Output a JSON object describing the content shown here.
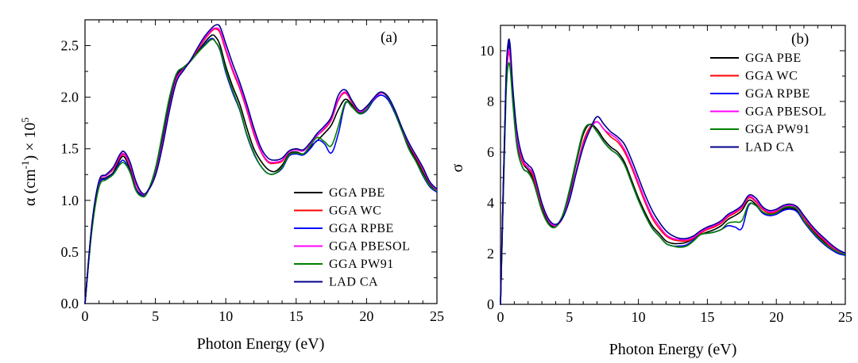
{
  "chart_data": [
    {
      "type": "line",
      "panel_label": "(a)",
      "xlabel": "Photon Energy (eV)",
      "ylabel": "α (cm⁻¹) × 10⁵",
      "ylabel_parts": {
        "symbol": "α (cm",
        "exp1": "-1",
        "mid": ") × 10",
        "exp2": "5"
      },
      "xlim": [
        0,
        25
      ],
      "ylim": [
        0,
        2.75
      ],
      "xticks": [
        0,
        5,
        10,
        15,
        20,
        25
      ],
      "xtick_labels": [
        "0",
        "5",
        "10",
        "15",
        "20",
        "25"
      ],
      "yticks": [
        0,
        0.5,
        1.0,
        1.5,
        2.0,
        2.5
      ],
      "ytick_labels": [
        "0.0",
        "0.5",
        "1.0",
        "1.5",
        "2.0",
        "2.5"
      ],
      "legend_position": "bottom-right",
      "x": [
        0,
        0.5,
        1,
        1.5,
        2,
        2.5,
        2.8,
        3.2,
        3.6,
        4,
        4.4,
        5,
        5.5,
        6,
        6.5,
        7,
        7.5,
        8,
        8.5,
        9,
        9.3,
        9.6,
        10,
        10.5,
        11,
        11.5,
        12,
        12.5,
        13,
        13.5,
        14,
        14.5,
        15,
        15.5,
        16,
        16.5,
        17,
        17.5,
        18,
        18.5,
        19,
        19.5,
        20,
        20.5,
        21,
        21.5,
        22,
        22.5,
        23,
        23.5,
        24,
        24.5,
        25
      ],
      "series": [
        {
          "name": "GGA PBE",
          "color": "#000000",
          "values": [
            0,
            0.75,
            1.16,
            1.22,
            1.27,
            1.4,
            1.42,
            1.3,
            1.12,
            1.06,
            1.08,
            1.28,
            1.6,
            1.95,
            2.2,
            2.28,
            2.35,
            2.44,
            2.53,
            2.6,
            2.58,
            2.5,
            2.3,
            2.1,
            1.93,
            1.7,
            1.5,
            1.38,
            1.3,
            1.28,
            1.34,
            1.45,
            1.47,
            1.45,
            1.52,
            1.58,
            1.65,
            1.73,
            1.88,
            1.98,
            1.92,
            1.85,
            1.88,
            1.97,
            2.02,
            1.98,
            1.85,
            1.68,
            1.52,
            1.4,
            1.27,
            1.15,
            1.1
          ]
        },
        {
          "name": "GGA WC",
          "color": "#ff0000",
          "values": [
            0,
            0.77,
            1.18,
            1.24,
            1.3,
            1.42,
            1.44,
            1.34,
            1.16,
            1.07,
            1.08,
            1.26,
            1.55,
            1.9,
            2.18,
            2.27,
            2.35,
            2.46,
            2.56,
            2.64,
            2.66,
            2.62,
            2.45,
            2.25,
            2.08,
            1.87,
            1.64,
            1.47,
            1.37,
            1.36,
            1.38,
            1.47,
            1.49,
            1.48,
            1.55,
            1.63,
            1.69,
            1.78,
            1.97,
            2.04,
            1.94,
            1.86,
            1.9,
            1.98,
            2.04,
            2.0,
            1.87,
            1.7,
            1.55,
            1.42,
            1.3,
            1.17,
            1.1
          ]
        },
        {
          "name": "GGA RPBE",
          "color": "#0000ff",
          "values": [
            0,
            0.74,
            1.15,
            1.21,
            1.26,
            1.37,
            1.38,
            1.28,
            1.11,
            1.05,
            1.07,
            1.3,
            1.63,
            1.98,
            2.22,
            2.29,
            2.35,
            2.43,
            2.51,
            2.57,
            2.53,
            2.45,
            2.24,
            2.04,
            1.87,
            1.63,
            1.45,
            1.33,
            1.26,
            1.26,
            1.31,
            1.43,
            1.45,
            1.44,
            1.5,
            1.58,
            1.55,
            1.46,
            1.65,
            1.94,
            1.9,
            1.84,
            1.87,
            1.97,
            2.02,
            1.98,
            1.85,
            1.68,
            1.5,
            1.38,
            1.24,
            1.13,
            1.08
          ]
        },
        {
          "name": "GGA PBESOL",
          "color": "#ff00ff",
          "values": [
            0,
            0.77,
            1.18,
            1.24,
            1.31,
            1.43,
            1.45,
            1.35,
            1.17,
            1.07,
            1.08,
            1.25,
            1.54,
            1.89,
            2.17,
            2.27,
            2.36,
            2.47,
            2.57,
            2.65,
            2.67,
            2.64,
            2.47,
            2.27,
            2.1,
            1.89,
            1.66,
            1.48,
            1.38,
            1.37,
            1.39,
            1.47,
            1.49,
            1.48,
            1.55,
            1.63,
            1.7,
            1.79,
            1.98,
            2.05,
            1.95,
            1.86,
            1.9,
            1.98,
            2.04,
            2.0,
            1.87,
            1.7,
            1.55,
            1.43,
            1.31,
            1.17,
            1.1
          ]
        },
        {
          "name": "GGA PW91",
          "color": "#008000",
          "values": [
            0,
            0.72,
            1.13,
            1.2,
            1.25,
            1.35,
            1.36,
            1.27,
            1.1,
            1.04,
            1.07,
            1.31,
            1.65,
            2.0,
            2.23,
            2.29,
            2.35,
            2.43,
            2.5,
            2.56,
            2.53,
            2.46,
            2.26,
            2.06,
            1.88,
            1.64,
            1.46,
            1.33,
            1.26,
            1.26,
            1.32,
            1.44,
            1.46,
            1.45,
            1.53,
            1.61,
            1.57,
            1.53,
            1.72,
            1.95,
            1.9,
            1.84,
            1.88,
            1.99,
            2.05,
            2.0,
            1.86,
            1.68,
            1.5,
            1.38,
            1.25,
            1.14,
            1.09
          ]
        },
        {
          "name": "LAD CA",
          "color": "#00008b",
          "values": [
            0,
            0.78,
            1.19,
            1.25,
            1.32,
            1.45,
            1.47,
            1.37,
            1.19,
            1.08,
            1.08,
            1.24,
            1.52,
            1.87,
            2.15,
            2.26,
            2.36,
            2.48,
            2.59,
            2.67,
            2.7,
            2.68,
            2.52,
            2.32,
            2.14,
            1.93,
            1.7,
            1.51,
            1.41,
            1.39,
            1.41,
            1.48,
            1.5,
            1.49,
            1.56,
            1.65,
            1.72,
            1.81,
            2.02,
            2.07,
            1.96,
            1.87,
            1.91,
            1.99,
            2.05,
            2.01,
            1.88,
            1.71,
            1.56,
            1.44,
            1.32,
            1.18,
            1.11
          ]
        }
      ]
    },
    {
      "type": "line",
      "panel_label": "(b)",
      "xlabel": "Photon Energy (eV)",
      "ylabel": "σ",
      "xlim": [
        0,
        25
      ],
      "ylim": [
        0,
        11
      ],
      "xticks": [
        0,
        5,
        10,
        15,
        20,
        25
      ],
      "xtick_labels": [
        "0",
        "5",
        "10",
        "15",
        "20",
        "25"
      ],
      "yticks": [
        0,
        2,
        4,
        6,
        8,
        10
      ],
      "ytick_labels": [
        "0",
        "2",
        "4",
        "6",
        "8",
        "10"
      ],
      "legend_position": "top-right",
      "x": [
        0,
        0.2,
        0.4,
        0.55,
        0.7,
        0.9,
        1.2,
        1.6,
        2,
        2.4,
        3,
        3.5,
        4,
        4.5,
        5,
        5.5,
        6,
        6.5,
        7,
        7.5,
        8,
        8.5,
        9,
        9.5,
        10,
        10.5,
        11,
        11.5,
        12,
        12.5,
        13,
        13.5,
        14,
        14.5,
        15,
        15.5,
        16,
        16.5,
        17,
        17.5,
        18,
        18.5,
        19,
        19.5,
        20,
        20.5,
        21,
        21.5,
        22,
        22.5,
        23,
        23.5,
        24,
        24.5,
        25
      ],
      "series": [
        {
          "name": "GGA PBE",
          "color": "#000000",
          "values": [
            0,
            4.5,
            8.7,
            10.1,
            9.9,
            8.3,
            6.5,
            5.6,
            5.3,
            4.9,
            3.8,
            3.2,
            3.1,
            3.5,
            4.4,
            5.6,
            6.7,
            7.1,
            6.9,
            6.5,
            6.2,
            6.0,
            5.6,
            4.9,
            4.2,
            3.6,
            3.1,
            2.8,
            2.5,
            2.4,
            2.4,
            2.45,
            2.6,
            2.75,
            2.85,
            2.95,
            3.1,
            3.35,
            3.5,
            3.7,
            4.1,
            3.95,
            3.65,
            3.55,
            3.6,
            3.75,
            3.8,
            3.7,
            3.3,
            3.0,
            2.7,
            2.45,
            2.2,
            2.05,
            1.95
          ]
        },
        {
          "name": "GGA WC",
          "color": "#ff0000",
          "values": [
            0,
            4.6,
            8.6,
            9.8,
            9.7,
            8.2,
            6.5,
            5.6,
            5.4,
            5.0,
            3.9,
            3.3,
            3.1,
            3.4,
            4.2,
            5.3,
            6.4,
            7.0,
            7.2,
            6.9,
            6.6,
            6.4,
            6.0,
            5.4,
            4.7,
            4.0,
            3.4,
            3.0,
            2.7,
            2.55,
            2.5,
            2.5,
            2.6,
            2.8,
            2.95,
            3.05,
            3.2,
            3.45,
            3.6,
            3.8,
            4.2,
            4.05,
            3.75,
            3.6,
            3.65,
            3.8,
            3.85,
            3.75,
            3.4,
            3.05,
            2.75,
            2.5,
            2.25,
            2.1,
            1.98
          ]
        },
        {
          "name": "GGA RPBE",
          "color": "#0000ff",
          "values": [
            0,
            4.4,
            8.8,
            10.2,
            10.0,
            8.2,
            6.3,
            5.4,
            5.2,
            4.8,
            3.7,
            3.15,
            3.05,
            3.5,
            4.5,
            5.7,
            6.8,
            7.1,
            6.8,
            6.4,
            6.1,
            5.9,
            5.5,
            4.8,
            4.1,
            3.5,
            3.0,
            2.7,
            2.4,
            2.3,
            2.3,
            2.35,
            2.55,
            2.75,
            2.8,
            2.85,
            2.95,
            3.1,
            3.05,
            3.0,
            3.9,
            3.9,
            3.6,
            3.5,
            3.55,
            3.7,
            3.75,
            3.65,
            3.25,
            2.9,
            2.6,
            2.35,
            2.15,
            2.0,
            1.93
          ]
        },
        {
          "name": "GGA PBESOL",
          "color": "#ff00ff",
          "values": [
            0,
            4.5,
            8.6,
            9.9,
            9.8,
            8.3,
            6.6,
            5.7,
            5.4,
            5.1,
            3.95,
            3.3,
            3.1,
            3.4,
            4.2,
            5.3,
            6.3,
            6.9,
            7.2,
            6.9,
            6.7,
            6.5,
            6.1,
            5.5,
            4.8,
            4.1,
            3.5,
            3.1,
            2.75,
            2.6,
            2.55,
            2.55,
            2.65,
            2.85,
            3.0,
            3.1,
            3.25,
            3.5,
            3.65,
            3.85,
            4.25,
            4.1,
            3.8,
            3.65,
            3.7,
            3.85,
            3.9,
            3.8,
            3.45,
            3.1,
            2.8,
            2.55,
            2.3,
            2.12,
            2.0
          ]
        },
        {
          "name": "GGA PW91",
          "color": "#008000",
          "values": [
            0,
            4.2,
            8.2,
            9.4,
            9.3,
            7.9,
            6.2,
            5.4,
            5.2,
            4.8,
            3.7,
            3.15,
            3.05,
            3.5,
            4.5,
            5.7,
            6.8,
            7.1,
            6.8,
            6.4,
            6.1,
            5.9,
            5.5,
            4.8,
            4.1,
            3.5,
            3.0,
            2.7,
            2.4,
            2.3,
            2.25,
            2.3,
            2.5,
            2.75,
            2.8,
            2.85,
            2.95,
            3.2,
            3.25,
            3.3,
            3.95,
            3.9,
            3.65,
            3.55,
            3.6,
            3.8,
            3.85,
            3.75,
            3.3,
            2.95,
            2.65,
            2.4,
            2.2,
            2.05,
            1.96
          ]
        },
        {
          "name": "LAD CA",
          "color": "#00008b",
          "values": [
            0,
            4.6,
            8.9,
            10.3,
            10.2,
            8.5,
            6.8,
            5.8,
            5.5,
            5.2,
            4.0,
            3.35,
            3.15,
            3.4,
            4.1,
            5.2,
            6.2,
            6.9,
            7.4,
            7.1,
            6.8,
            6.6,
            6.3,
            5.7,
            5.0,
            4.3,
            3.7,
            3.25,
            2.9,
            2.7,
            2.6,
            2.6,
            2.7,
            2.9,
            3.05,
            3.15,
            3.3,
            3.55,
            3.7,
            3.9,
            4.3,
            4.2,
            3.85,
            3.7,
            3.75,
            3.9,
            3.95,
            3.85,
            3.5,
            3.15,
            2.85,
            2.6,
            2.35,
            2.15,
            2.02
          ]
        }
      ]
    }
  ]
}
